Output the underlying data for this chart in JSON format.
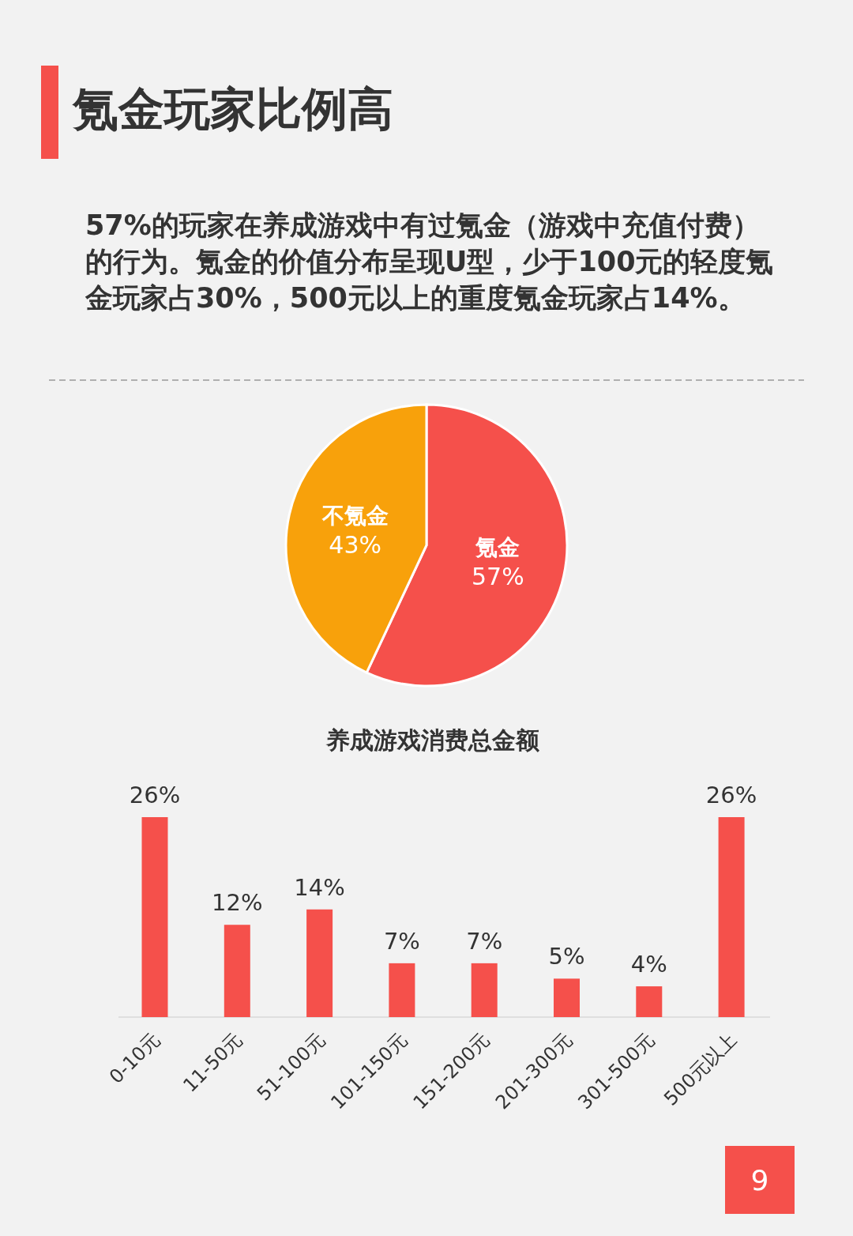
{
  "chart_data": [
    {
      "type": "pie",
      "title": "氪金玩家比例高",
      "subtitle": "57%的玩家在养成游戏中有过氪金（游戏中充值付费）的行为。氪金的价值分布呈现U型，少于100元的轻度氪金玩家占30%，500元以上的重度氪金玩家占14%。",
      "categories": [
        "氪金",
        "不氪金"
      ],
      "values": [
        57,
        43
      ],
      "colors": [
        "#f5504b",
        "#f8a10b"
      ],
      "value_labels": [
        "57%",
        "43%"
      ]
    },
    {
      "type": "bar",
      "title": "养成游戏消费总金额",
      "categories": [
        "0-10元",
        "11-50元",
        "51-100元",
        "101-150元",
        "151-200元",
        "201-300元",
        "301-500元",
        "500元以上"
      ],
      "values": [
        26,
        12,
        14,
        7,
        7,
        5,
        4,
        26
      ],
      "color": "#f5504b",
      "value_labels": [
        "26%",
        "12%",
        "14%",
        "7%",
        "7%",
        "5%",
        "4%",
        "26%"
      ],
      "annotations": [
        "9"
      ]
    }
  ]
}
